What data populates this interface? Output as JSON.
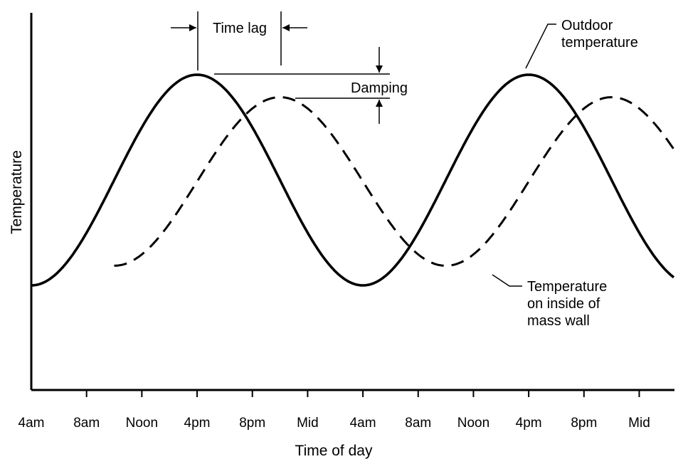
{
  "chart_data": {
    "type": "line",
    "title": "",
    "xlabel": "Time of day",
    "ylabel": "Temperature",
    "categories": [
      "4am",
      "8am",
      "Noon",
      "4pm",
      "8pm",
      "Mid",
      "4am",
      "8am",
      "Noon",
      "4pm",
      "8pm",
      "Mid"
    ],
    "x_unit": "hours since 4am",
    "xlim": [
      0,
      46.5
    ],
    "ylim": [
      0,
      1
    ],
    "grid": false,
    "legend": "none",
    "series": [
      {
        "name": "Outdoor temperature",
        "style": "solid",
        "period_hours": 24,
        "peak_hours": [
          12,
          36
        ],
        "min_value": 0.25,
        "max_value": 1.0,
        "x_start": 0
      },
      {
        "name": "Temperature on inside of mass wall",
        "style": "dashed",
        "period_hours": 24,
        "peak_hours": [
          18,
          42
        ],
        "min_value": 0.32,
        "max_value": 0.92,
        "x_start": 6
      }
    ],
    "annotations": {
      "time_lag": "Time lag",
      "damping": "Damping",
      "outdoor_line1": "Outdoor",
      "outdoor_line2": "temperature",
      "inside_line1": "Temperature",
      "inside_line2": "on inside of",
      "inside_line3": "mass wall"
    }
  }
}
